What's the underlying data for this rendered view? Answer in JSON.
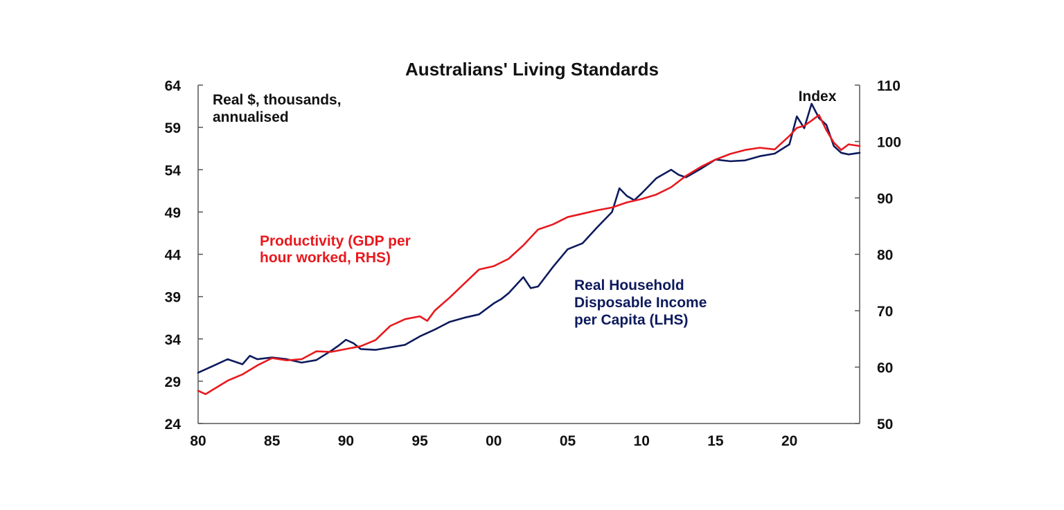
{
  "chart_data": {
    "type": "line",
    "title": "Australians' Living Standards",
    "left_axis_note": [
      "Real $, thousands,",
      "annualised"
    ],
    "right_axis_note": "Index",
    "x_range": [
      1980,
      2024.75
    ],
    "x_ticks": [
      {
        "year": 1980,
        "label": "80"
      },
      {
        "year": 1985,
        "label": "85"
      },
      {
        "year": 1990,
        "label": "90"
      },
      {
        "year": 1995,
        "label": "95"
      },
      {
        "year": 2000,
        "label": "00"
      },
      {
        "year": 2005,
        "label": "05"
      },
      {
        "year": 2010,
        "label": "10"
      },
      {
        "year": 2015,
        "label": "15"
      },
      {
        "year": 2020,
        "label": "20"
      }
    ],
    "y_left": {
      "range": [
        24,
        64
      ],
      "ticks": [
        24,
        29,
        34,
        39,
        44,
        49,
        54,
        59,
        64
      ]
    },
    "y_right": {
      "range": [
        50,
        110
      ],
      "ticks": [
        50,
        60,
        70,
        80,
        90,
        100,
        110
      ]
    },
    "colors": {
      "income": "#0d1a5c",
      "productivity": "#e8191e",
      "axis": "#555555"
    },
    "series": [
      {
        "name": "Real Household Disposable Income per Capita (LHS)",
        "label_lines": [
          "Real Household",
          "Disposable Income",
          "per Capita (LHS)"
        ],
        "axis": "left",
        "x": [
          1980,
          1981,
          1982,
          1983,
          1983.5,
          1984,
          1985,
          1986,
          1987,
          1988,
          1989,
          1989.5,
          1990,
          1990.5,
          1991,
          1992,
          1993,
          1994,
          1995,
          1996,
          1997,
          1998,
          1999,
          2000,
          2000.5,
          2001,
          2002,
          2002.5,
          2003,
          2004,
          2005,
          2006,
          2007,
          2008,
          2008.5,
          2009,
          2009.5,
          2010,
          2011,
          2012,
          2012.5,
          2013,
          2014,
          2015,
          2016,
          2017,
          2018,
          2019,
          2020,
          2020.5,
          2021,
          2021.5,
          2022,
          2022.5,
          2023,
          2023.5,
          2024,
          2024.75
        ],
        "values": [
          30.0,
          30.8,
          31.6,
          31.0,
          32.0,
          31.6,
          31.8,
          31.6,
          31.2,
          31.5,
          32.6,
          33.2,
          33.9,
          33.5,
          32.8,
          32.7,
          33.0,
          33.3,
          34.3,
          35.1,
          36.0,
          36.5,
          36.9,
          38.2,
          38.7,
          39.4,
          41.3,
          40.0,
          40.2,
          42.5,
          44.6,
          45.3,
          47.2,
          49.0,
          51.8,
          50.9,
          50.4,
          51.2,
          53.0,
          54.0,
          53.4,
          53.1,
          54.1,
          55.2,
          55.0,
          55.1,
          55.6,
          55.9,
          57.0,
          60.3,
          58.9,
          61.8,
          60.1,
          59.3,
          56.8,
          56.0,
          55.8,
          56.0
        ]
      },
      {
        "name": "Productivity (GDP per hour worked, RHS)",
        "label_lines": [
          "Productivity (GDP per",
          "hour worked, RHS)"
        ],
        "axis": "right",
        "x": [
          1980,
          1980.5,
          1981,
          1982,
          1983,
          1984,
          1985,
          1986,
          1987,
          1988,
          1989,
          1990,
          1991,
          1992,
          1993,
          1994,
          1995,
          1995.5,
          1996,
          1997,
          1998,
          1999,
          2000,
          2001,
          2002,
          2003,
          2004,
          2005,
          2006,
          2007,
          2008,
          2009,
          2010,
          2011,
          2012,
          2013,
          2014,
          2015,
          2016,
          2017,
          2018,
          2019,
          2020,
          2020.5,
          2021,
          2021.5,
          2022,
          2022.5,
          2023,
          2023.5,
          2024,
          2024.75
        ],
        "values": [
          55.8,
          55.2,
          56.0,
          57.6,
          58.7,
          60.3,
          61.6,
          61.2,
          61.4,
          62.8,
          62.7,
          63.2,
          63.7,
          64.8,
          67.3,
          68.5,
          69.0,
          68.2,
          70.0,
          72.3,
          74.8,
          77.3,
          77.9,
          79.2,
          81.6,
          84.4,
          85.3,
          86.6,
          87.2,
          87.8,
          88.3,
          89.2,
          89.8,
          90.6,
          91.9,
          93.9,
          95.5,
          96.8,
          97.8,
          98.5,
          98.9,
          98.6,
          101.0,
          102.4,
          102.8,
          103.7,
          104.7,
          102.0,
          99.8,
          98.5,
          99.5,
          99.2
        ]
      }
    ]
  }
}
